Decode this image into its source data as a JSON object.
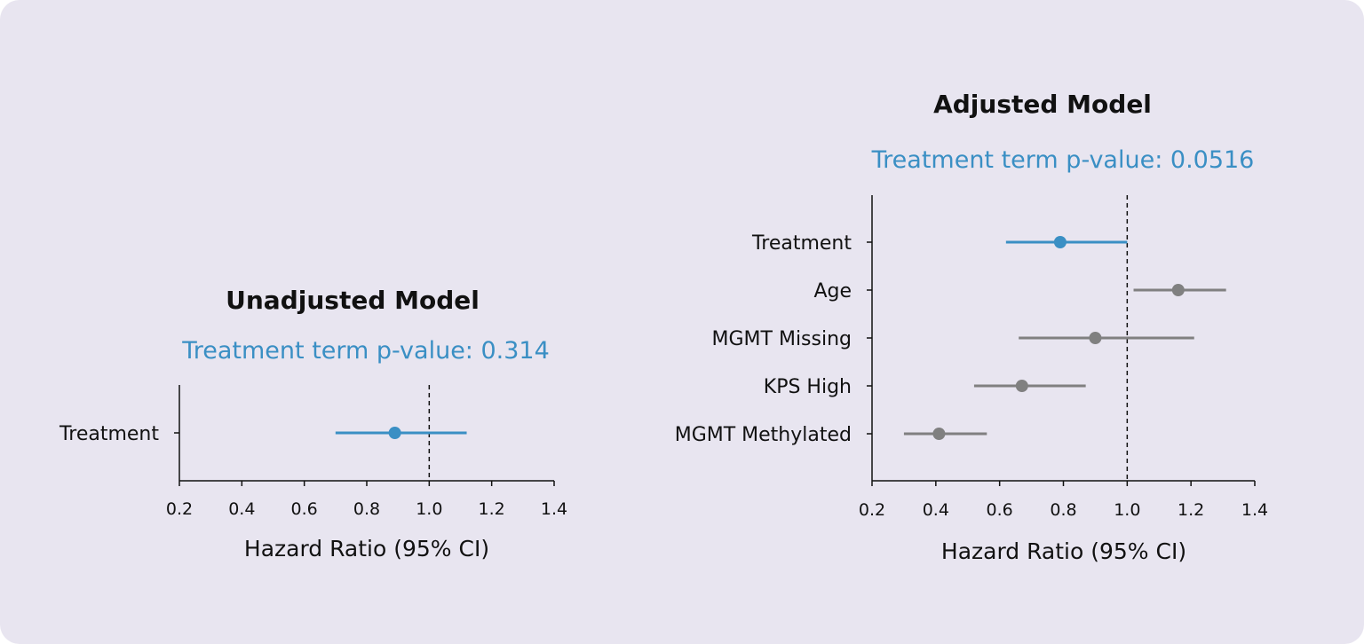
{
  "chart_data": [
    {
      "type": "forest",
      "title": "Unadjusted Model",
      "subtitle": "Treatment term p-value: 0.314",
      "xlabel": "Hazard Ratio (95% CI)",
      "xlim": [
        0.2,
        1.4
      ],
      "xticks": [
        0.2,
        0.4,
        0.6,
        0.8,
        1.0,
        1.2,
        1.4
      ],
      "reference_line": 1.0,
      "grid": false,
      "rows": [
        {
          "label": "Treatment",
          "hr": 0.89,
          "lower": 0.7,
          "upper": 1.12,
          "color": "#3a8fc4"
        }
      ]
    },
    {
      "type": "forest",
      "title": "Adjusted Model",
      "subtitle": "Treatment term p-value: 0.0516",
      "xlabel": "Hazard Ratio (95% CI)",
      "xlim": [
        0.2,
        1.4
      ],
      "xticks": [
        0.2,
        0.4,
        0.6,
        0.8,
        1.0,
        1.2,
        1.4
      ],
      "reference_line": 1.0,
      "grid": false,
      "rows": [
        {
          "label": "Treatment",
          "hr": 0.79,
          "lower": 0.62,
          "upper": 1.0,
          "color": "#3a8fc4"
        },
        {
          "label": "Age",
          "hr": 1.16,
          "lower": 1.02,
          "upper": 1.31,
          "color": "#808080"
        },
        {
          "label": "MGMT Missing",
          "hr": 0.9,
          "lower": 0.66,
          "upper": 1.21,
          "color": "#808080"
        },
        {
          "label": "KPS High",
          "hr": 0.67,
          "lower": 0.52,
          "upper": 0.87,
          "color": "#808080"
        },
        {
          "label": "MGMT Methylated",
          "hr": 0.41,
          "lower": 0.3,
          "upper": 0.56,
          "color": "#808080"
        }
      ]
    }
  ],
  "colors": {
    "background": "#e8e5f0",
    "accent": "#3a8fc4",
    "covariate": "#808080"
  }
}
